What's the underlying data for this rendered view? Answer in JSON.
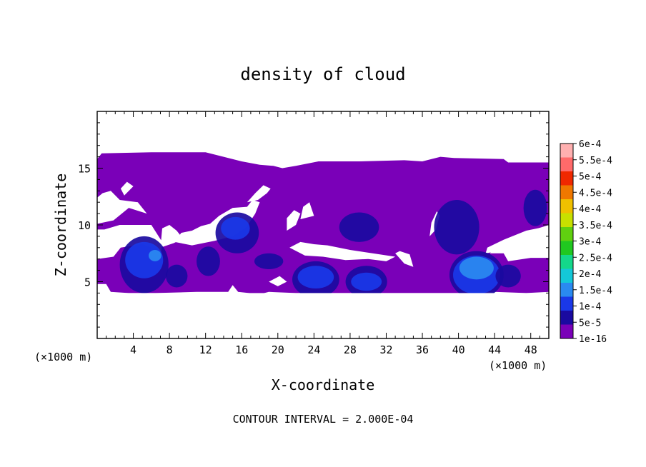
{
  "chart_data": {
    "type": "heatmap",
    "title": "density of cloud",
    "xlabel": "X-coordinate",
    "ylabel": "Z-coordinate",
    "x_unit_label": "(×1000 m)",
    "xlim": [
      0,
      50
    ],
    "ylim": [
      0,
      20
    ],
    "x_ticks": [
      4,
      8,
      12,
      16,
      20,
      24,
      28,
      32,
      36,
      40,
      44,
      48
    ],
    "y_ticks": [
      5,
      10,
      15
    ],
    "footnote": "CONTOUR INTERVAL = 2.000E-04",
    "colorbar": {
      "levels": [
        "1e-16",
        "5e-5",
        "1e-4",
        "1.5e-4",
        "2e-4",
        "2.5e-4",
        "3e-4",
        "3.5e-4",
        "4e-4",
        "4.5e-4",
        "5e-4",
        "5.5e-4",
        "6e-4"
      ],
      "colors": [
        "#7a00b8",
        "#1a0aa0",
        "#1a38e8",
        "#2a8af0",
        "#14c8d8",
        "#14d88a",
        "#20c820",
        "#60d010",
        "#c8e000",
        "#f0c000",
        "#f07800",
        "#f02800",
        "#ff6a6a",
        "#ffb0b0"
      ]
    },
    "cloud_layer": {
      "base_level": "1e-16",
      "z_range_km": [
        4.0,
        16.5
      ],
      "polygon": [
        [
          0.0,
          4.8
        ],
        [
          1.0,
          4.8
        ],
        [
          1.5,
          4.1
        ],
        [
          3.5,
          4.0
        ],
        [
          6.5,
          4.0
        ],
        [
          11.0,
          4.1
        ],
        [
          14.5,
          4.1
        ],
        [
          15.0,
          4.7
        ],
        [
          15.6,
          4.1
        ],
        [
          18.0,
          3.9
        ],
        [
          19.0,
          4.1
        ],
        [
          22.0,
          4.0
        ],
        [
          36.0,
          4.0
        ],
        [
          40.0,
          4.0
        ],
        [
          44.0,
          4.1
        ],
        [
          47.5,
          4.0
        ],
        [
          50.0,
          4.1
        ],
        [
          50.0,
          7.1
        ],
        [
          48.0,
          7.1
        ],
        [
          45.5,
          6.8
        ],
        [
          45.0,
          7.5
        ],
        [
          43.5,
          7.5
        ],
        [
          44.0,
          8.0
        ],
        [
          48.0,
          9.5
        ],
        [
          50.0,
          10.0
        ],
        [
          50.0,
          15.5
        ],
        [
          45.5,
          15.5
        ],
        [
          45.0,
          15.8
        ],
        [
          39.5,
          15.9
        ],
        [
          38.0,
          16.0
        ],
        [
          36.0,
          15.6
        ],
        [
          34.0,
          15.7
        ],
        [
          29.0,
          15.6
        ],
        [
          26.5,
          15.6
        ],
        [
          24.5,
          15.6
        ],
        [
          22.0,
          15.2
        ],
        [
          20.5,
          15.0
        ],
        [
          19.5,
          15.2
        ],
        [
          18.0,
          15.3
        ],
        [
          16.0,
          15.6
        ],
        [
          14.0,
          16.0
        ],
        [
          12.0,
          16.4
        ],
        [
          6.0,
          16.4
        ],
        [
          0.5,
          16.3
        ],
        [
          0.0,
          15.8
        ]
      ],
      "gaps": [
        [
          [
            0.0,
            7.0
          ],
          [
            1.8,
            7.2
          ],
          [
            2.6,
            8.0
          ],
          [
            5.0,
            8.3
          ],
          [
            6.0,
            8.0
          ],
          [
            5.8,
            7.2
          ],
          [
            7.0,
            7.1
          ],
          [
            7.2,
            8.5
          ],
          [
            6.0,
            10.0
          ],
          [
            2.5,
            10.0
          ],
          [
            0.8,
            9.6
          ],
          [
            0.0,
            9.6
          ]
        ],
        [
          [
            0.0,
            10.1
          ],
          [
            1.8,
            10.4
          ],
          [
            3.5,
            11.5
          ],
          [
            5.5,
            11.0
          ],
          [
            4.5,
            12.0
          ],
          [
            2.5,
            12.2
          ],
          [
            1.5,
            13.0
          ],
          [
            0.6,
            12.8
          ],
          [
            0.0,
            12.4
          ]
        ],
        [
          [
            3.0,
            12.6
          ],
          [
            4.0,
            13.4
          ],
          [
            3.3,
            13.8
          ],
          [
            2.6,
            13.2
          ]
        ],
        [
          [
            8.6,
            8.5
          ],
          [
            10.5,
            8.2
          ],
          [
            13.0,
            8.6
          ],
          [
            15.0,
            9.0
          ],
          [
            16.5,
            9.8
          ],
          [
            17.5,
            11.0
          ],
          [
            18.0,
            12.0
          ],
          [
            17.2,
            12.2
          ],
          [
            16.6,
            11.6
          ],
          [
            15.0,
            11.5
          ],
          [
            13.5,
            10.8
          ],
          [
            12.5,
            10.1
          ],
          [
            11.5,
            9.9
          ],
          [
            10.5,
            9.5
          ],
          [
            9.3,
            9.3
          ]
        ],
        [
          [
            16.6,
            12.0
          ],
          [
            17.8,
            12.2
          ],
          [
            18.8,
            12.8
          ],
          [
            19.2,
            13.2
          ],
          [
            18.4,
            13.5
          ],
          [
            17.5,
            12.8
          ]
        ],
        [
          [
            7.0,
            8.0
          ],
          [
            8.5,
            8.4
          ],
          [
            9.5,
            8.8
          ],
          [
            8.8,
            9.5
          ],
          [
            8.0,
            10.0
          ],
          [
            7.2,
            9.7
          ]
        ],
        [
          [
            21.0,
            9.5
          ],
          [
            22.0,
            10.0
          ],
          [
            22.5,
            11.0
          ],
          [
            21.8,
            11.3
          ],
          [
            21.0,
            10.6
          ]
        ],
        [
          [
            22.5,
            10.5
          ],
          [
            24.0,
            10.8
          ],
          [
            23.5,
            12.0
          ],
          [
            22.8,
            11.6
          ]
        ],
        [
          [
            23.0,
            7.3
          ],
          [
            25.0,
            7.2
          ],
          [
            27.5,
            6.9
          ],
          [
            30.0,
            7.0
          ],
          [
            32.0,
            6.8
          ],
          [
            33.0,
            7.2
          ],
          [
            30.5,
            7.5
          ],
          [
            28.0,
            7.8
          ],
          [
            25.5,
            8.2
          ],
          [
            24.0,
            8.3
          ],
          [
            22.5,
            8.5
          ],
          [
            21.3,
            8.0
          ]
        ],
        [
          [
            33.0,
            7.5
          ],
          [
            34.0,
            6.6
          ],
          [
            35.0,
            6.3
          ],
          [
            34.6,
            7.4
          ],
          [
            33.5,
            7.7
          ]
        ],
        [
          [
            36.8,
            9.0
          ],
          [
            37.5,
            9.6
          ],
          [
            37.9,
            10.8
          ],
          [
            37.6,
            11.2
          ],
          [
            37.0,
            10.2
          ]
        ],
        [
          [
            43.0,
            7.5
          ],
          [
            46.0,
            7.9
          ],
          [
            48.0,
            8.3
          ],
          [
            50.0,
            8.8
          ],
          [
            50.0,
            9.9
          ],
          [
            47.5,
            9.5
          ],
          [
            45.0,
            8.7
          ],
          [
            43.2,
            8.0
          ]
        ],
        [
          [
            19.0,
            5.0
          ],
          [
            20.0,
            4.6
          ],
          [
            21.0,
            5.0
          ],
          [
            20.2,
            5.5
          ]
        ],
        [
          [
            29.5,
            16.5
          ],
          [
            31.0,
            16.5
          ],
          [
            31.0,
            17.0
          ],
          [
            29.5,
            17.0
          ]
        ]
      ],
      "blobs": [
        {
          "level": "5e-5",
          "center": [
            5.2,
            6.5
          ],
          "radius": [
            2.7,
            2.5
          ]
        },
        {
          "level": "1e-4",
          "center": [
            5.2,
            6.9
          ],
          "radius": [
            2.1,
            1.6
          ]
        },
        {
          "level": "1.5e-4",
          "center": [
            6.4,
            7.3
          ],
          "radius": [
            0.7,
            0.5
          ]
        },
        {
          "level": "5e-5",
          "center": [
            15.5,
            9.3
          ],
          "radius": [
            2.4,
            1.8
          ]
        },
        {
          "level": "1e-4",
          "center": [
            15.3,
            9.7
          ],
          "radius": [
            1.6,
            1.0
          ]
        },
        {
          "level": "5e-5",
          "center": [
            24.2,
            5.2
          ],
          "radius": [
            2.6,
            1.6
          ]
        },
        {
          "level": "1e-4",
          "center": [
            24.2,
            5.4
          ],
          "radius": [
            2.0,
            1.0
          ]
        },
        {
          "level": "5e-5",
          "center": [
            29.8,
            5.0
          ],
          "radius": [
            2.3,
            1.4
          ]
        },
        {
          "level": "1e-4",
          "center": [
            29.8,
            5.0
          ],
          "radius": [
            1.7,
            0.8
          ]
        },
        {
          "level": "5e-5",
          "center": [
            42.0,
            5.6
          ],
          "radius": [
            3.0,
            2.1
          ]
        },
        {
          "level": "1e-4",
          "center": [
            42.0,
            5.6
          ],
          "radius": [
            2.6,
            1.7
          ]
        },
        {
          "level": "1.5e-4",
          "center": [
            42.0,
            6.2
          ],
          "radius": [
            1.9,
            1.0
          ]
        },
        {
          "level": "5e-5",
          "center": [
            12.3,
            6.8
          ],
          "radius": [
            1.3,
            1.3
          ]
        },
        {
          "level": "5e-5",
          "center": [
            19.0,
            6.8
          ],
          "radius": [
            1.6,
            0.7
          ]
        },
        {
          "level": "5e-5",
          "center": [
            39.8,
            9.8
          ],
          "radius": [
            2.5,
            2.4
          ]
        },
        {
          "level": "5e-5",
          "center": [
            48.5,
            11.5
          ],
          "radius": [
            1.3,
            1.6
          ]
        },
        {
          "level": "5e-5",
          "center": [
            45.5,
            5.5
          ],
          "radius": [
            1.4,
            1.0
          ]
        },
        {
          "level": "5e-5",
          "center": [
            29.0,
            9.8
          ],
          "radius": [
            2.2,
            1.3
          ]
        },
        {
          "level": "5e-5",
          "center": [
            8.8,
            5.5
          ],
          "radius": [
            1.2,
            1.0
          ]
        }
      ]
    }
  }
}
